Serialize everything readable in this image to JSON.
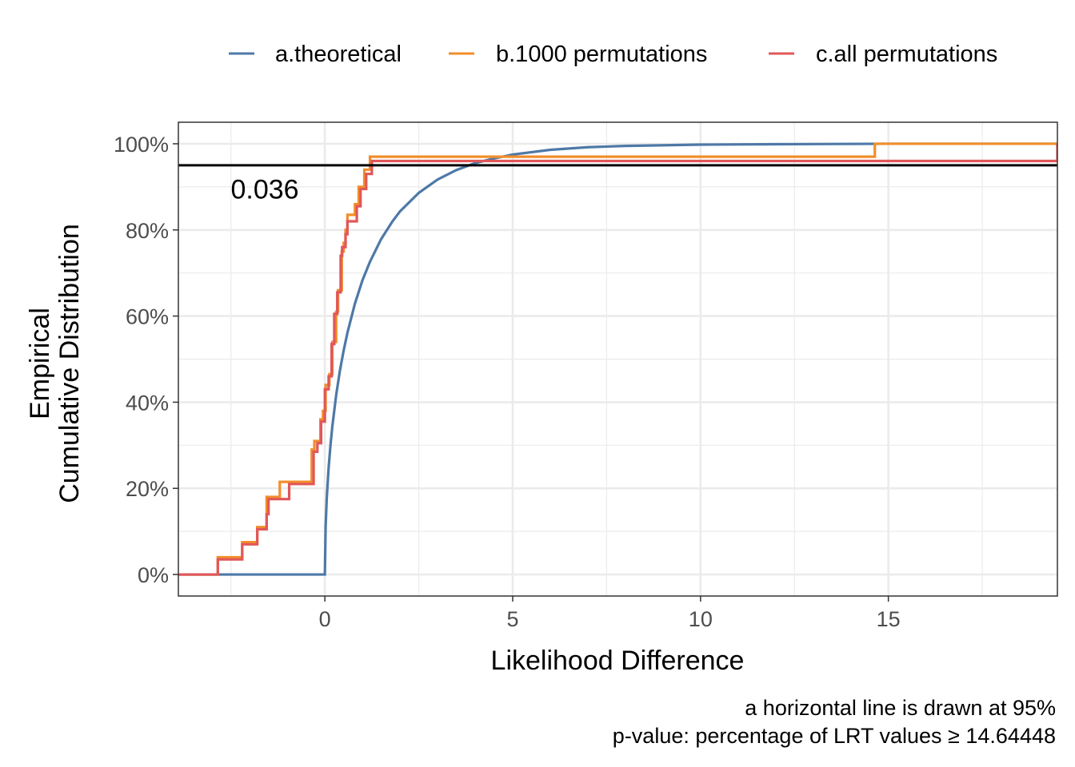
{
  "chart_data": {
    "type": "line",
    "title": "",
    "xlabel": "Likelihood Difference",
    "ylabel_lines": [
      "Empirical",
      "Cumulative Distribution"
    ],
    "xlim": [
      -3.9,
      19.5
    ],
    "ylim": [
      -0.05,
      1.05
    ],
    "x_ticks": [
      0,
      5,
      10,
      15
    ],
    "x_tick_labels": [
      "0",
      "5",
      "10",
      "15"
    ],
    "y_ticks": [
      0,
      0.2,
      0.4,
      0.6,
      0.8,
      1.0
    ],
    "y_tick_labels": [
      "0%",
      "20%",
      "40%",
      "60%",
      "80%",
      "100%"
    ],
    "grid": true,
    "legend_position": "top",
    "hline": {
      "y": 0.95,
      "color": "#000000"
    },
    "annotation": {
      "text": "0.036",
      "x": -1.6,
      "y": 0.895
    },
    "caption_lines": [
      "a horizontal line is drawn at 95%",
      "p-value: percentage of LRT values ≥ 14.64448"
    ],
    "series": [
      {
        "name": "a.theoretical",
        "color": "#4e79a7",
        "style": "smooth",
        "x": [
          -3.9,
          0,
          0.0,
          0.02,
          0.05,
          0.1,
          0.15,
          0.2,
          0.3,
          0.4,
          0.5,
          0.6,
          0.8,
          1.0,
          1.2,
          1.5,
          1.8,
          2.0,
          2.5,
          3.0,
          3.5,
          4.0,
          4.5,
          5.0,
          6.0,
          7.0,
          8.0,
          10.0,
          12.0,
          15.0,
          19.5
        ],
        "y": [
          0,
          0,
          0,
          0.112,
          0.177,
          0.248,
          0.301,
          0.345,
          0.416,
          0.473,
          0.52,
          0.561,
          0.629,
          0.683,
          0.726,
          0.779,
          0.82,
          0.843,
          0.886,
          0.917,
          0.939,
          0.955,
          0.966,
          0.975,
          0.986,
          0.992,
          0.995,
          0.998,
          0.999,
          1.0,
          1.0
        ]
      },
      {
        "name": "b.1000 permutations",
        "color": "#f28e2b",
        "style": "step",
        "x": [
          -3.9,
          -2.85,
          -2.2,
          -1.8,
          -1.55,
          -1.2,
          -0.35,
          -0.28,
          -0.12,
          -0.05,
          0.02,
          0.12,
          0.2,
          0.3,
          0.35,
          0.45,
          0.5,
          0.55,
          0.6,
          0.8,
          0.9,
          1.05,
          1.2,
          1.3,
          14.64,
          19.5
        ],
        "y": [
          0,
          0.04,
          0.075,
          0.11,
          0.18,
          0.215,
          0.29,
          0.31,
          0.36,
          0.38,
          0.44,
          0.465,
          0.54,
          0.61,
          0.66,
          0.75,
          0.77,
          0.8,
          0.835,
          0.86,
          0.9,
          0.94,
          0.97,
          0.97,
          1.0,
          1.0
        ]
      },
      {
        "name": "c.all permutations",
        "color": "#e15759",
        "style": "step",
        "x": [
          -3.9,
          -2.85,
          -2.2,
          -1.8,
          -1.55,
          -1.5,
          -0.95,
          -0.3,
          -0.2,
          -0.1,
          0.0,
          0.1,
          0.18,
          0.25,
          0.33,
          0.42,
          0.46,
          0.55,
          0.6,
          0.85,
          0.95,
          1.1,
          1.25,
          14.64,
          19.5
        ],
        "y": [
          0,
          0.035,
          0.07,
          0.105,
          0.14,
          0.175,
          0.21,
          0.285,
          0.305,
          0.355,
          0.43,
          0.46,
          0.535,
          0.605,
          0.655,
          0.74,
          0.76,
          0.79,
          0.82,
          0.855,
          0.895,
          0.93,
          0.96,
          0.96,
          1.0
        ]
      }
    ]
  }
}
